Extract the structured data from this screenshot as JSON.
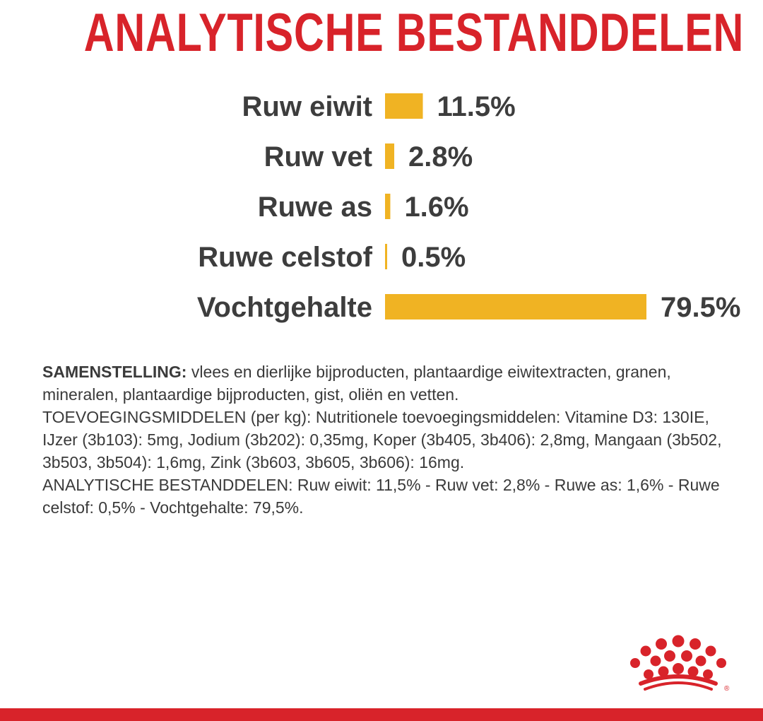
{
  "header": {
    "title": "ANALYTISCHE BESTANDDELEN"
  },
  "colors": {
    "title": "#d8232a",
    "bar": "#f0b323",
    "label": "#3d3d3d",
    "brand_red": "#d8232a"
  },
  "chart_data": {
    "type": "bar",
    "orientation": "horizontal",
    "title": "ANALYTISCHE BESTANDDELEN",
    "categories": [
      "Ruw eiwit",
      "Ruw vet",
      "Ruwe as",
      "Ruwe celstof",
      "Vochtgehalte"
    ],
    "values": [
      11.5,
      2.8,
      1.6,
      0.5,
      79.5
    ],
    "value_labels": [
      "11.5%",
      "2.8%",
      "1.6%",
      "0.5%",
      "79.5%"
    ],
    "unit": "%",
    "grid": false,
    "legend": "none"
  },
  "composition": {
    "heading": "SAMENSTELLING:",
    "body": " vlees en dierlijke bijproducten, plantaardige eiwitextracten, granen, mineralen, plantaardige bijproducten, gist, oliën en vetten.",
    "additives": "TOEVOEGINGSMIDDELEN (per kg): Nutritionele toevoegingsmiddelen: Vitamine D3: 130IE, IJzer (3b103): 5mg, Jodium (3b202): 0,35mg, Koper (3b405, 3b406): 2,8mg, Mangaan (3b502, 3b503, 3b504): 1,6mg, Zink (3b603, 3b605, 3b606): 16mg.",
    "analysis": "ANALYTISCHE BESTANDDELEN: Ruw eiwit: 11,5% - Ruw vet: 2,8% - Ruwe as: 1,6% - Ruwe celstof: 0,5% - Vochtgehalte: 79,5%."
  },
  "logo": {
    "icon": "crown-icon",
    "mark": "®"
  }
}
